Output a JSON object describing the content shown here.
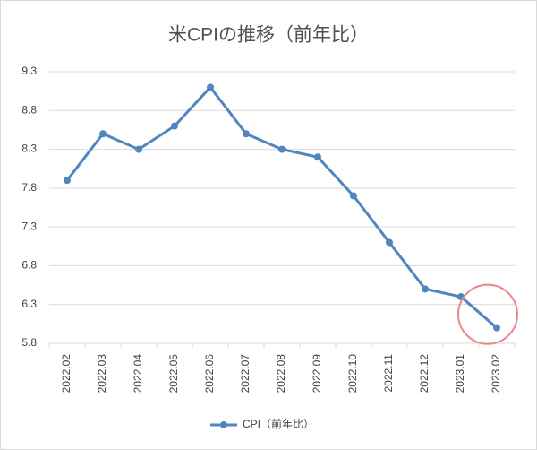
{
  "chart_data": {
    "type": "line",
    "title": "米CPIの推移（前年比）",
    "categories": [
      "2022.02",
      "2022.03",
      "2022.04",
      "2022.05",
      "2022.06",
      "2022.07",
      "2022.08",
      "2022.09",
      "2022.10",
      "2022.11",
      "2022.12",
      "2023.01",
      "2023.02"
    ],
    "series": [
      {
        "name": "CPI（前年比）",
        "color": "#4f86c0",
        "values": [
          7.9,
          8.5,
          8.3,
          8.6,
          9.1,
          8.5,
          8.3,
          8.2,
          7.7,
          7.1,
          6.5,
          6.4,
          6.0
        ]
      }
    ],
    "ylim": [
      5.8,
      9.3
    ],
    "yticks": [
      5.8,
      6.3,
      6.8,
      7.3,
      7.8,
      8.3,
      8.8,
      9.3
    ],
    "grid": true,
    "legend": "bottom"
  }
}
